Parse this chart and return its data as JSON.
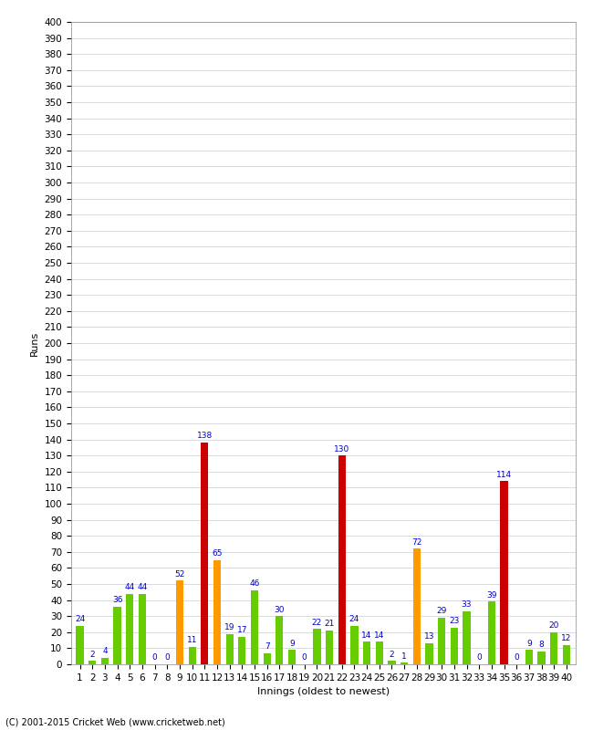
{
  "values": [
    24,
    2,
    4,
    36,
    44,
    44,
    0,
    0,
    52,
    11,
    138,
    65,
    19,
    17,
    46,
    7,
    30,
    9,
    0,
    22,
    21,
    130,
    24,
    14,
    14,
    2,
    1,
    72,
    13,
    29,
    23,
    33,
    0,
    39,
    114,
    0,
    9,
    8,
    20,
    12
  ],
  "xlabel": "Innings (oldest to newest)",
  "ylabel": "Runs",
  "ylim": [
    0,
    400
  ],
  "background_color": "#ffffff",
  "grid_color": "#cccccc",
  "bar_color_normal": "#66cc00",
  "bar_color_fifty": "#ff9900",
  "bar_color_hundred": "#cc0000",
  "label_color": "#0000cc",
  "footer": "(C) 2001-2015 Cricket Web (www.cricketweb.net)",
  "label_fontsize": 6.5,
  "axis_fontsize": 7.5,
  "ylabel_fontsize": 8,
  "xlabel_fontsize": 8,
  "footer_fontsize": 7,
  "fifty_threshold": 50,
  "hundred_threshold": 100
}
